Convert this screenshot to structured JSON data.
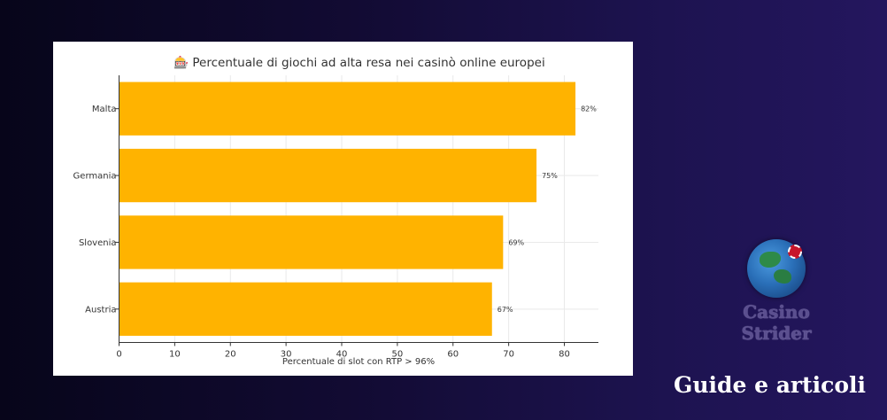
{
  "chart_data": {
    "type": "bar",
    "orientation": "horizontal",
    "title": "🎰 Percentuale di giochi ad alta resa nei casinò online europei",
    "xlabel": "Percentuale di slot con RTP > 96%",
    "ylabel": "",
    "categories": [
      "Malta",
      "Germania",
      "Slovenia",
      "Austria"
    ],
    "values": [
      82,
      75,
      69,
      67
    ],
    "data_labels": [
      "82%",
      "75%",
      "69%",
      "67%"
    ],
    "xlim": [
      0,
      85
    ],
    "xticks": [
      0,
      10,
      20,
      30,
      40,
      50,
      60,
      70,
      80
    ],
    "bar_color": "#FFB300",
    "grid": true
  },
  "brand": {
    "line1": "Casino",
    "line2": "Strider",
    "icon": "globe-casino-chip-icon"
  },
  "caption": "Guide e articoli"
}
